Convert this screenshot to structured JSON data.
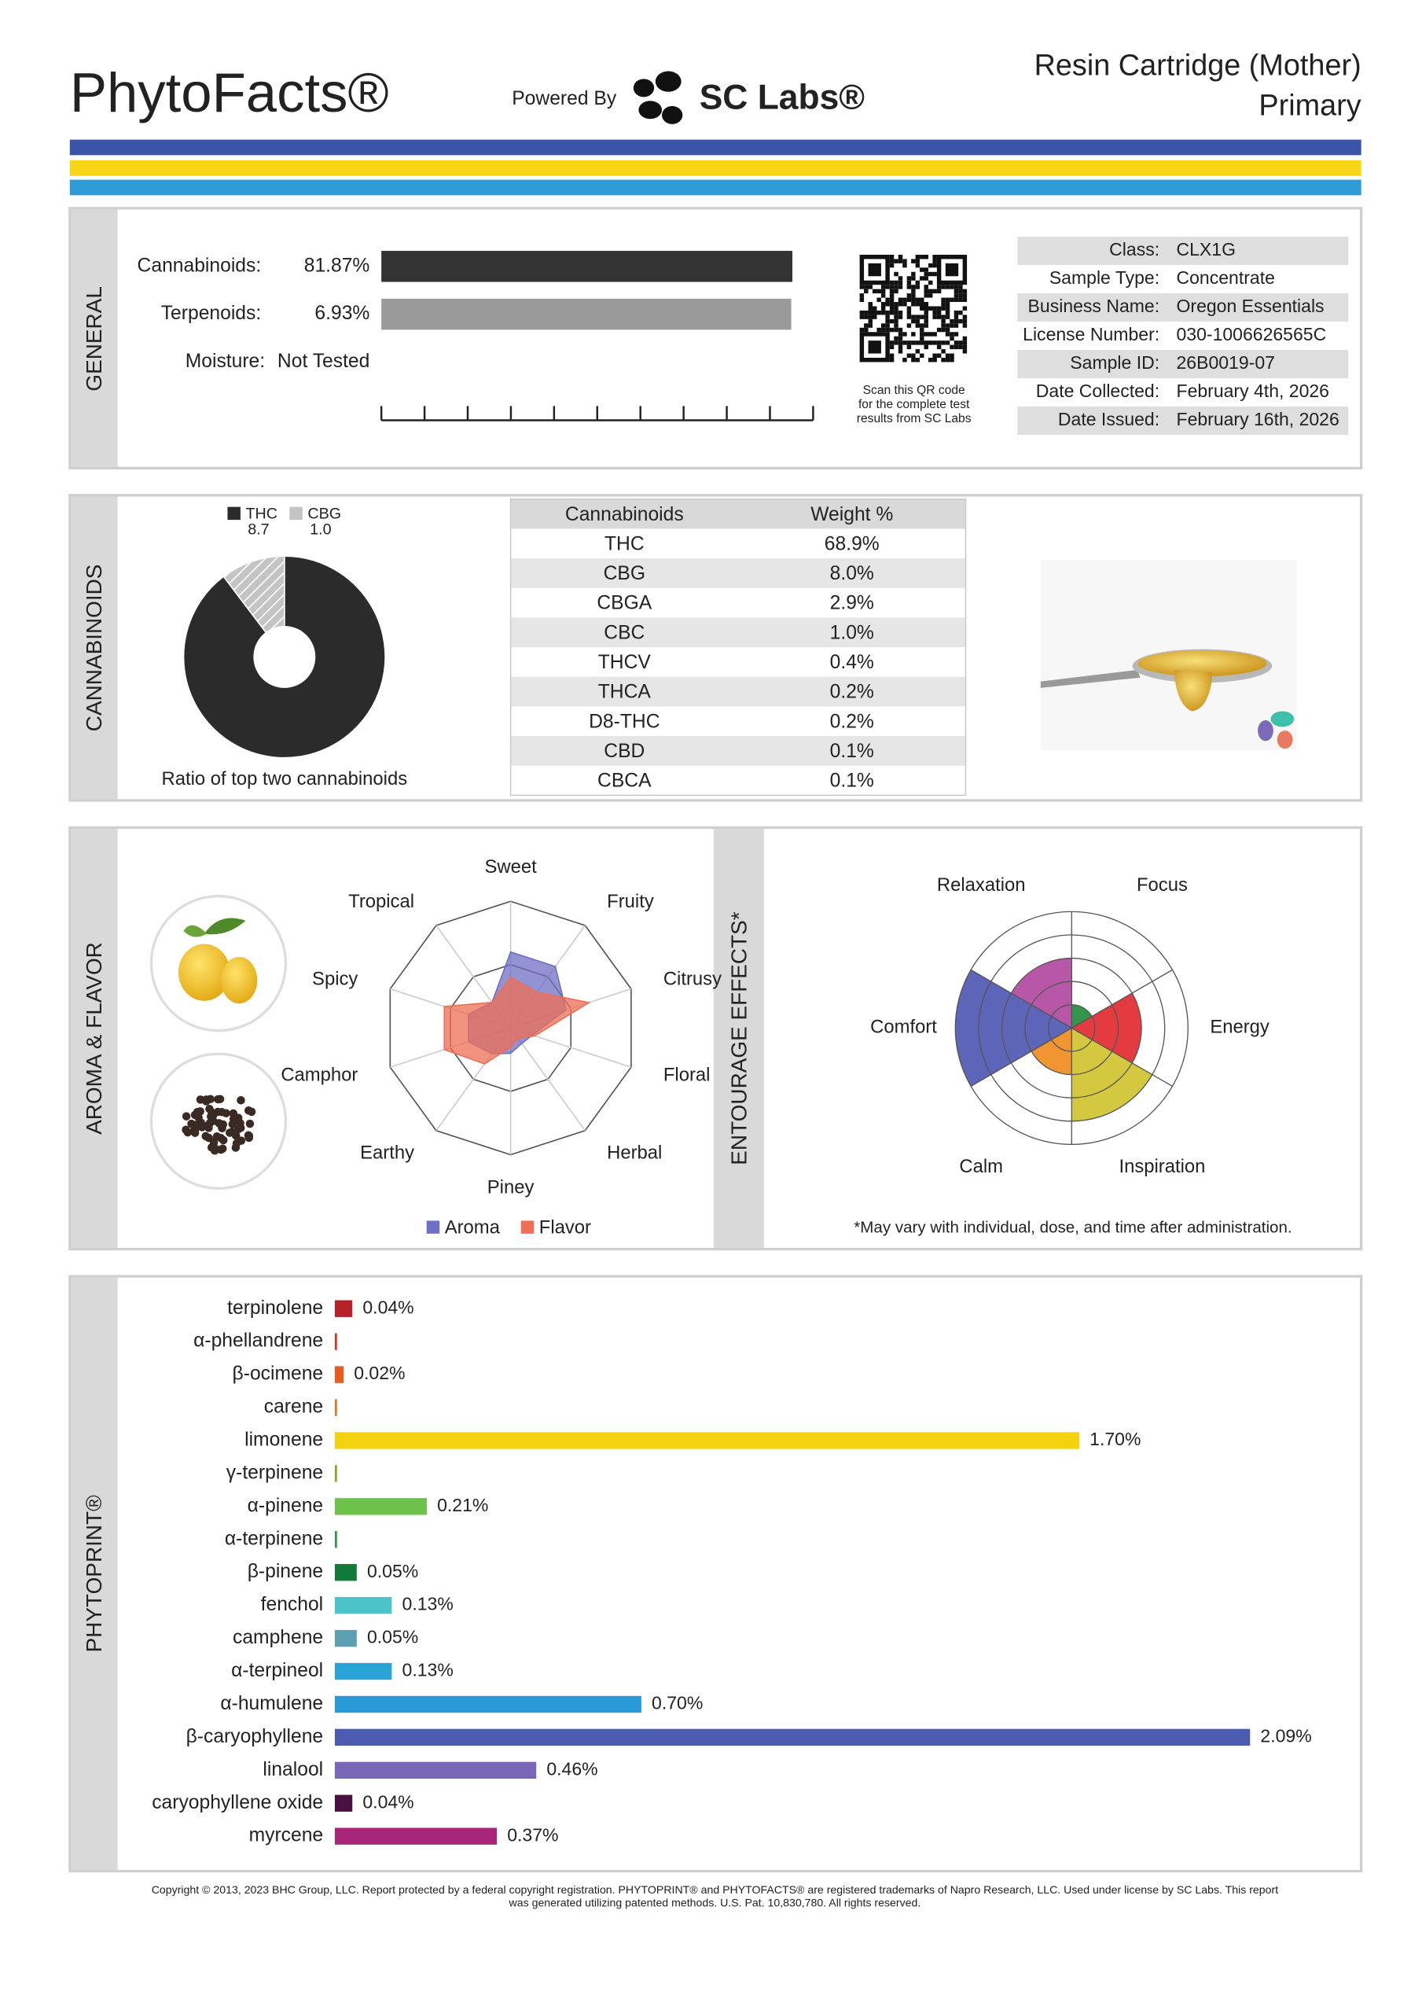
{
  "header": {
    "brand": "PhytoFacts®",
    "powered_by": "Powered By",
    "lab": "SC Labs®",
    "product": "Resin Cartridge (Mother)",
    "subtitle": "Primary"
  },
  "general": {
    "label": "GENERAL",
    "bars": [
      {
        "name": "Cannabinoids:",
        "value": 81.87,
        "value_label": "81.87%",
        "xlim": [
          0,
          86
        ],
        "color": "#333333"
      },
      {
        "name": "Terpenoids:",
        "value": 6.93,
        "value_label": "6.93%",
        "xlim": [
          0,
          7.3
        ],
        "color": "#9a9a9a"
      },
      {
        "name": "Moisture:",
        "value": null,
        "value_label": "Not Tested"
      }
    ],
    "qr_caption": [
      "Scan this QR code",
      "for the complete test",
      "results from SC Labs"
    ],
    "info": [
      {
        "key": "Class:",
        "value": "CLX1G"
      },
      {
        "key": "Sample Type:",
        "value": "Concentrate"
      },
      {
        "key": "Business Name:",
        "value": "Oregon Essentials"
      },
      {
        "key": "License Number:",
        "value": "030-1006626565C"
      },
      {
        "key": "Sample ID:",
        "value": "26B0019-07"
      },
      {
        "key": "Date Collected:",
        "value": "February 4th, 2026"
      },
      {
        "key": "Date Issued:",
        "value": "February 16th, 2026"
      }
    ]
  },
  "cannabinoids": {
    "label": "CANNABINOIDS",
    "chart": {
      "type": "pie",
      "categories": [
        "THC",
        "CBG"
      ],
      "values": [
        8.7,
        1.0
      ],
      "value_labels": [
        "8.7",
        "1.0"
      ],
      "colors": [
        "#2b2b2b",
        "#c4c4c4"
      ],
      "caption": "Ratio of top two cannabinoids"
    },
    "table": {
      "header": [
        "Cannabinoids",
        "Weight %"
      ],
      "rows": [
        [
          "THC",
          "68.9%"
        ],
        [
          "CBG",
          "8.0%"
        ],
        [
          "CBGA",
          "2.9%"
        ],
        [
          "CBC",
          "1.0%"
        ],
        [
          "THCV",
          "0.4%"
        ],
        [
          "THCA",
          "0.2%"
        ],
        [
          "D8-THC",
          "0.2%"
        ],
        [
          "CBD",
          "0.1%"
        ],
        [
          "CBCA",
          "0.1%"
        ]
      ]
    }
  },
  "aroma": {
    "label": "AROMA & FLAVOR",
    "chart": {
      "type": "radar",
      "categories": [
        "Sweet",
        "Fruity",
        "Citrusy",
        "Floral",
        "Herbal",
        "Piney",
        "Earthy",
        "Camphor",
        "Spicy",
        "Tropical"
      ],
      "rlim": [
        0,
        1
      ],
      "rticks": [
        0.5,
        1
      ],
      "series": [
        {
          "name": "Aroma",
          "color": "#6f6fc4",
          "values": [
            0.6,
            0.6,
            0.46,
            0.18,
            0.15,
            0.2,
            0.25,
            0.35,
            0.35,
            0.25
          ]
        },
        {
          "name": "Flavor",
          "color": "#ee6f55",
          "values": [
            0.4,
            0.35,
            0.65,
            0.2,
            0.1,
            0.15,
            0.35,
            0.55,
            0.55,
            0.25
          ]
        }
      ]
    }
  },
  "entourage": {
    "label": "ENTOURAGE EFFECTS*",
    "chart": {
      "type": "polar-area",
      "categories": [
        "Focus",
        "Energy",
        "Inspiration",
        "Calm",
        "Comfort",
        "Relaxation"
      ],
      "colors": [
        "#1e8a3c",
        "#e0262b",
        "#cfc22c",
        "#f08a1c",
        "#4a54b0",
        "#b0449e"
      ],
      "values": [
        1,
        3,
        4,
        2,
        5,
        3
      ],
      "rlim": [
        0,
        5
      ],
      "rticks": [
        1,
        2,
        3,
        4,
        5
      ]
    },
    "note": "*May vary with individual, dose, and time after administration."
  },
  "phytoprint": {
    "label": "PHYTOPRINT®",
    "chart": {
      "type": "bar",
      "orientation": "horizontal",
      "categories": [
        "terpinolene",
        "α-phellandrene",
        "β-ocimene",
        "carene",
        "limonene",
        "γ-terpinene",
        "α-pinene",
        "α-terpinene",
        "β-pinene",
        "fenchol",
        "camphene",
        "α-terpineol",
        "α-humulene",
        "β-caryophyllene",
        "linalool",
        "caryophyllene oxide",
        "myrcene"
      ],
      "colors": [
        "#b5222a",
        "#d9342b",
        "#e85d1e",
        "#d9792a",
        "#f5d20f",
        "#8aa62a",
        "#6cc24a",
        "#2a9a4a",
        "#0f7a3a",
        "#4cc3c8",
        "#5b9fb0",
        "#2aa3d8",
        "#2a9ad6",
        "#4a5bb0",
        "#7a66b8",
        "#4a1140",
        "#a8267a"
      ],
      "values": [
        0.04,
        0.005,
        0.02,
        0.005,
        1.7,
        0.005,
        0.21,
        0.005,
        0.05,
        0.13,
        0.05,
        0.13,
        0.7,
        2.09,
        0.46,
        0.04,
        0.37
      ],
      "value_labels": [
        "0.04%",
        null,
        "0.02%",
        null,
        "1.70%",
        null,
        "0.21%",
        null,
        "0.05%",
        "0.13%",
        "0.05%",
        "0.13%",
        "0.70%",
        "2.09%",
        "0.46%",
        "0.04%",
        "0.37%"
      ],
      "xlim": [
        0,
        2.3
      ]
    }
  },
  "footer": [
    "Copyright © 2013, 2023 BHC Group, LLC. Report protected by a federal copyright registration. PHYTOPRINT® and PHYTOFACTS® are registered trademarks of Napro Research, LLC. Used under license by SC Labs. This report",
    "was generated utilizing patented methods. U.S. Pat. 10,830,780. All rights reserved."
  ]
}
